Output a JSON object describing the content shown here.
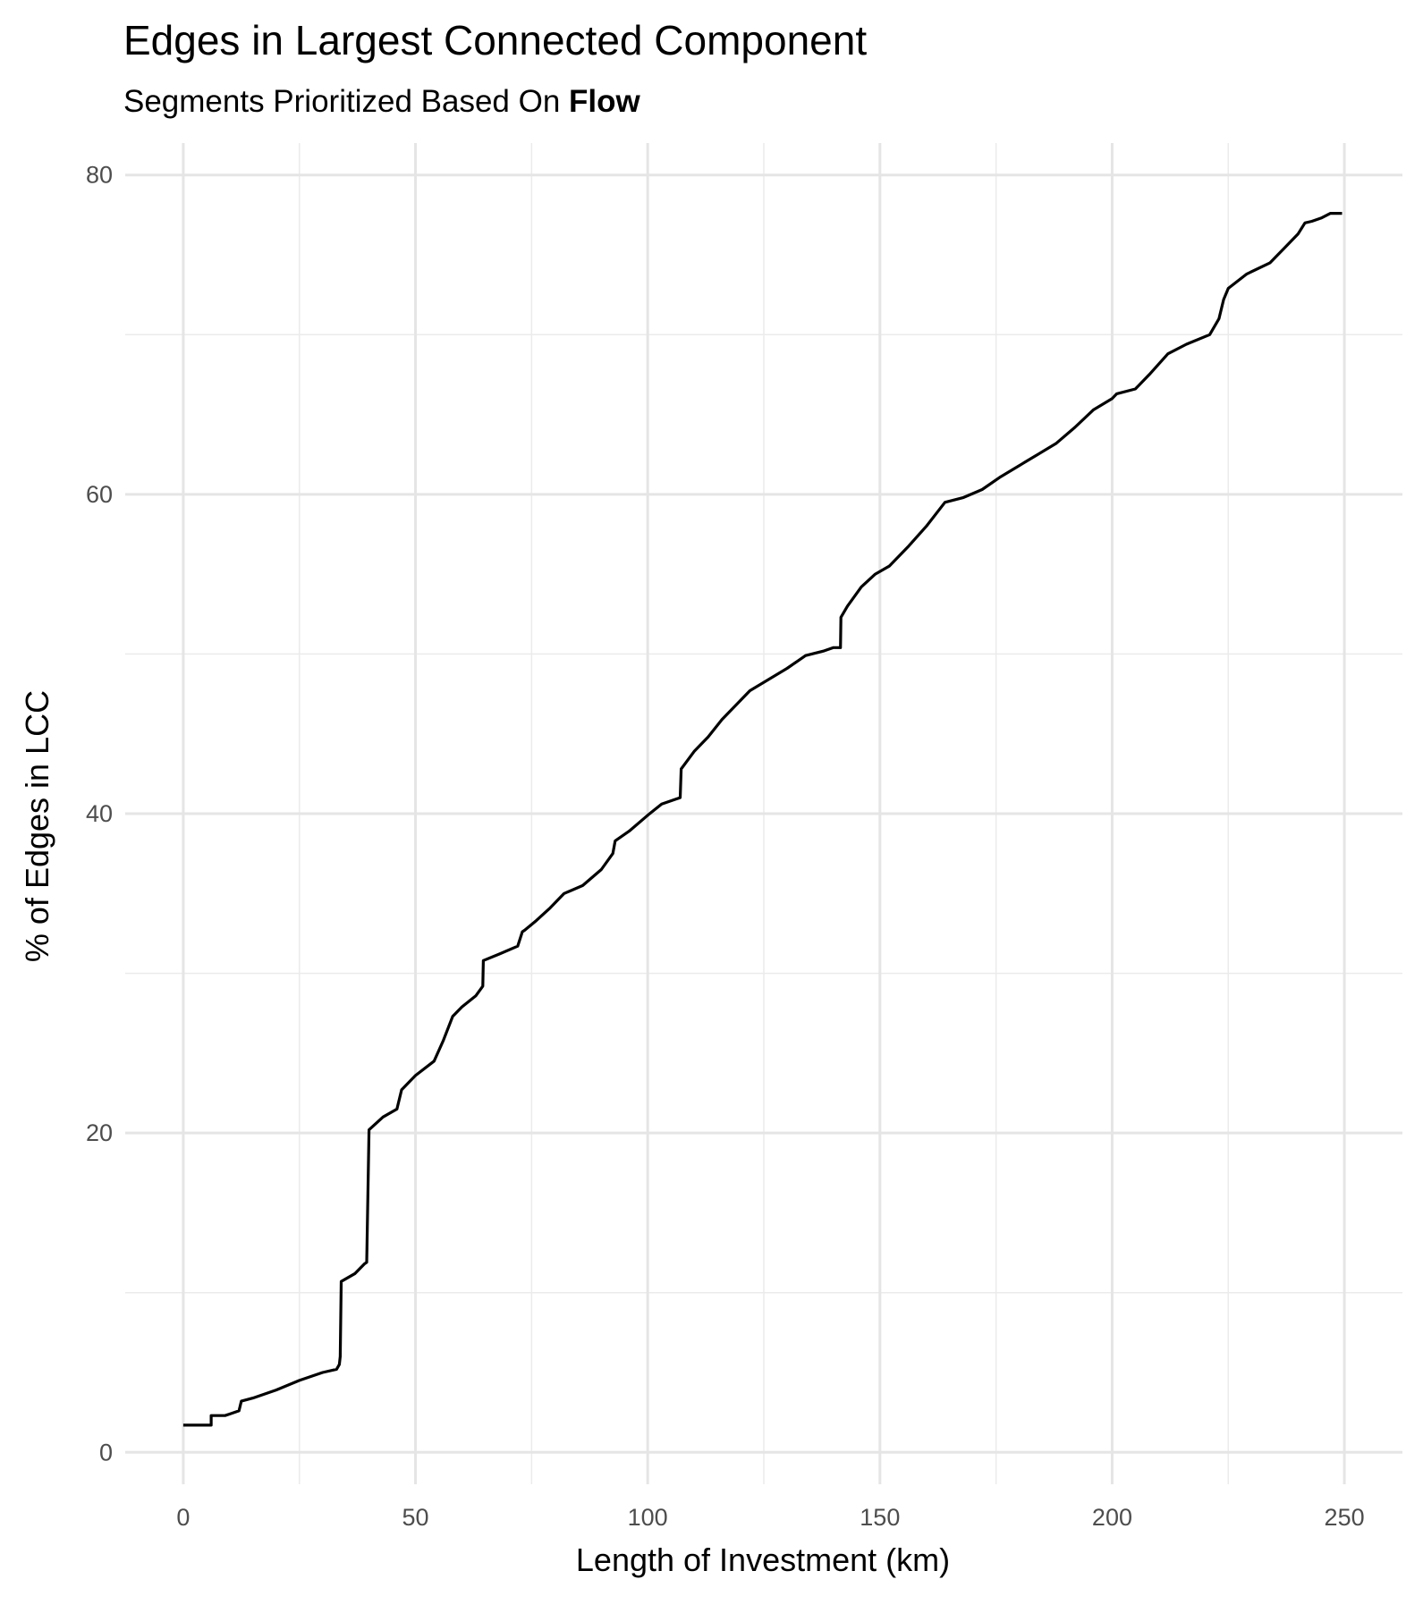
{
  "title": "Edges in Largest Connected Component",
  "subtitle_prefix": "Segments Prioritized Based On ",
  "subtitle_bold": "Flow",
  "chart_data": {
    "type": "line",
    "title": "Edges in Largest Connected Component",
    "subtitle": "Segments Prioritized Based On Flow",
    "xlabel": "Length of Investment (km)",
    "ylabel": "% of Edges in LCC",
    "xlim": [
      -12.5,
      262.5
    ],
    "ylim": [
      -2,
      82
    ],
    "x_ticks": [
      0,
      50,
      100,
      150,
      200,
      250
    ],
    "y_ticks": [
      0,
      20,
      40,
      60,
      80
    ],
    "x_tick_labels": [
      "0",
      "50",
      "100",
      "150",
      "200",
      "250"
    ],
    "y_tick_labels": [
      "0",
      "20",
      "40",
      "60",
      "80"
    ],
    "grid": true,
    "line_color": "#000000",
    "x": [
      0,
      6,
      6,
      9,
      12,
      12.5,
      15,
      20,
      25,
      30,
      33,
      33.6,
      33.8,
      34,
      37,
      39,
      39.5,
      40,
      43,
      46,
      47,
      50,
      54,
      56,
      58,
      60,
      63,
      64.5,
      64.6,
      68,
      72,
      73,
      73.5,
      76,
      79,
      82,
      86,
      90,
      92.5,
      93,
      96,
      100,
      103,
      106,
      107,
      107.2,
      110,
      113,
      116,
      119,
      122,
      126,
      130,
      134,
      138,
      140,
      141.5,
      141.6,
      143,
      146,
      149,
      152,
      156,
      160,
      164,
      168,
      172,
      176,
      180,
      184,
      188,
      192,
      196,
      200,
      201,
      205,
      208,
      212,
      216,
      221,
      223,
      224,
      225,
      229,
      234,
      237,
      240,
      241.5,
      243,
      245,
      247,
      249.5
    ],
    "y": [
      1.7,
      1.7,
      2.3,
      2.3,
      2.6,
      3.2,
      3.4,
      3.9,
      4.5,
      5.0,
      5.2,
      5.5,
      6.0,
      10.7,
      11.2,
      11.8,
      11.9,
      20.2,
      21.0,
      21.5,
      22.7,
      23.6,
      24.5,
      25.8,
      27.3,
      27.9,
      28.6,
      29.2,
      30.8,
      31.2,
      31.7,
      32.6,
      32.7,
      33.3,
      34.1,
      35.0,
      35.5,
      36.5,
      37.5,
      38.3,
      38.9,
      39.9,
      40.6,
      40.9,
      41.0,
      42.8,
      43.9,
      44.8,
      45.9,
      46.8,
      47.7,
      48.4,
      49.1,
      49.9,
      50.2,
      50.4,
      50.4,
      52.3,
      53.0,
      54.2,
      55.0,
      55.5,
      56.7,
      58.0,
      59.5,
      59.8,
      60.3,
      61.1,
      61.8,
      62.5,
      63.2,
      64.2,
      65.3,
      66.0,
      66.3,
      66.6,
      67.5,
      68.8,
      69.4,
      70.0,
      71.0,
      72.2,
      72.9,
      73.8,
      74.5,
      75.4,
      76.3,
      77.0,
      77.1,
      77.3,
      77.6,
      77.6
    ]
  }
}
